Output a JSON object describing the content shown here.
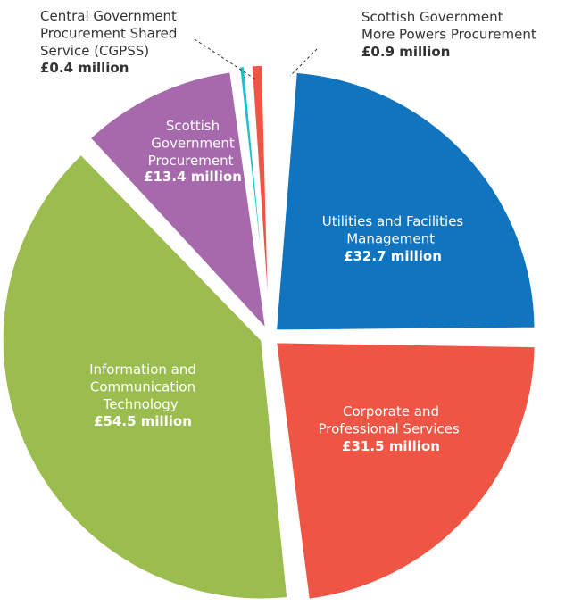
{
  "chart_data": {
    "type": "pie",
    "title": "",
    "unit": "£ million",
    "slices": [
      {
        "label": "Utilities and Facilities Management",
        "value": 32.7,
        "value_label": "£32.7 million",
        "color": "#1174bf"
      },
      {
        "label": "Corporate and Professional Services",
        "value": 31.5,
        "value_label": "£31.5 million",
        "color": "#ee5545"
      },
      {
        "label": "Information and Communication Technology",
        "value": 54.5,
        "value_label": "£54.5 million",
        "color": "#9bbc4e"
      },
      {
        "label": "Scottish Government Procurement",
        "value": 13.4,
        "value_label": "£13.4 million",
        "color": "#a669ab"
      },
      {
        "label": "Central Government Procurement Shared Service (CGPSS)",
        "value": 0.4,
        "value_label": "£0.4 million",
        "color": "#1fbfd0"
      },
      {
        "label": "Scottish Government More Powers Procurement",
        "value": 0.9,
        "value_label": "£0.9 million",
        "color": "#ee5545"
      }
    ]
  }
}
